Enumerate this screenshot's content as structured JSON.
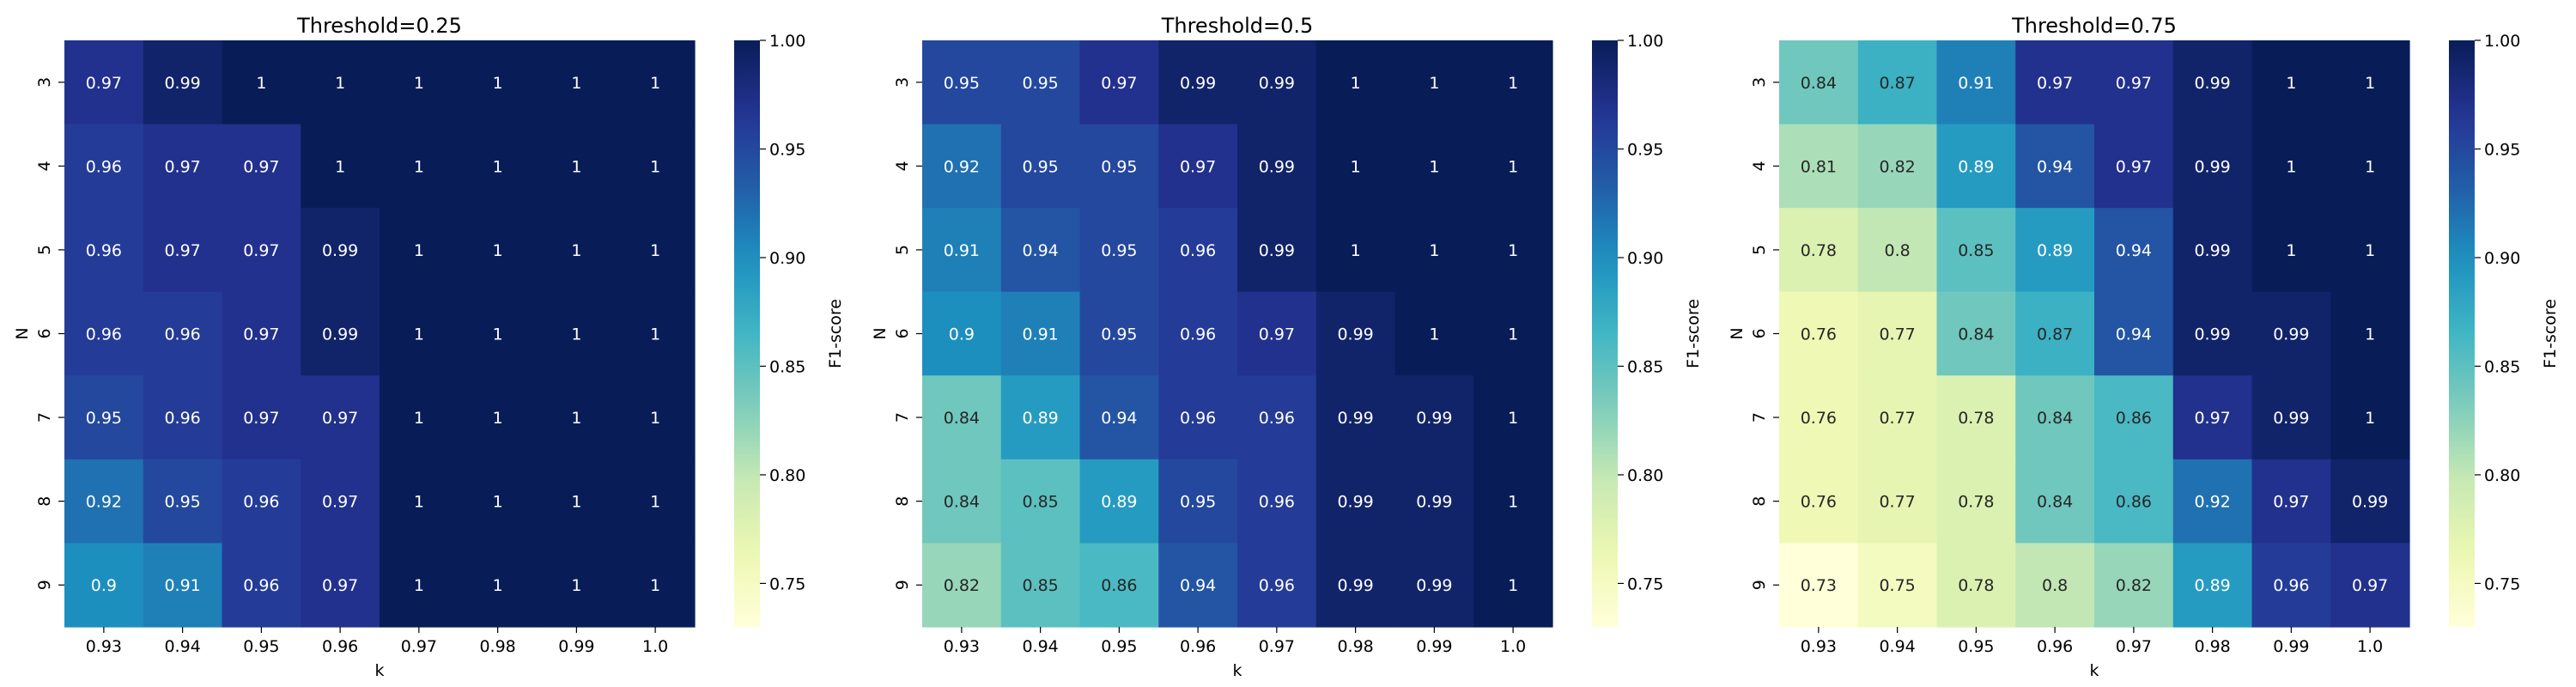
{
  "figure": {
    "domain": "heatmap-triptych"
  },
  "chart_data": [
    {
      "type": "heatmap",
      "title": "Threshold=0.25",
      "xlabel": "k",
      "ylabel": "N",
      "x": [
        "0.93",
        "0.94",
        "0.95",
        "0.96",
        "0.97",
        "0.98",
        "0.99",
        "1.0"
      ],
      "y": [
        "3",
        "4",
        "5",
        "6",
        "7",
        "8",
        "9"
      ],
      "values": [
        [
          0.97,
          0.99,
          1,
          1,
          1,
          1,
          1,
          1
        ],
        [
          0.96,
          0.97,
          0.97,
          1,
          1,
          1,
          1,
          1
        ],
        [
          0.96,
          0.97,
          0.97,
          0.99,
          1,
          1,
          1,
          1
        ],
        [
          0.96,
          0.96,
          0.97,
          0.99,
          1,
          1,
          1,
          1
        ],
        [
          0.95,
          0.96,
          0.97,
          0.97,
          1,
          1,
          1,
          1
        ],
        [
          0.92,
          0.95,
          0.96,
          0.97,
          1,
          1,
          1,
          1
        ],
        [
          0.9,
          0.91,
          0.96,
          0.97,
          1,
          1,
          1,
          1
        ]
      ],
      "colorbar": {
        "label": "F1-score",
        "ticks": [
          "0.75",
          "0.80",
          "0.85",
          "0.90",
          "0.95",
          "1.00"
        ],
        "range": [
          0.73,
          1.0
        ],
        "colormap": "YlGnBu"
      }
    },
    {
      "type": "heatmap",
      "title": "Threshold=0.5",
      "xlabel": "k",
      "ylabel": "N",
      "x": [
        "0.93",
        "0.94",
        "0.95",
        "0.96",
        "0.97",
        "0.98",
        "0.99",
        "1.0"
      ],
      "y": [
        "3",
        "4",
        "5",
        "6",
        "7",
        "8",
        "9"
      ],
      "values": [
        [
          0.95,
          0.95,
          0.97,
          0.99,
          0.99,
          1,
          1,
          1
        ],
        [
          0.92,
          0.95,
          0.95,
          0.97,
          0.99,
          1,
          1,
          1
        ],
        [
          0.91,
          0.94,
          0.95,
          0.96,
          0.99,
          1,
          1,
          1
        ],
        [
          0.9,
          0.91,
          0.95,
          0.96,
          0.97,
          0.99,
          1,
          1
        ],
        [
          0.84,
          0.89,
          0.94,
          0.96,
          0.96,
          0.99,
          0.99,
          1
        ],
        [
          0.84,
          0.85,
          0.89,
          0.95,
          0.96,
          0.99,
          0.99,
          1
        ],
        [
          0.82,
          0.85,
          0.86,
          0.94,
          0.96,
          0.99,
          0.99,
          1
        ]
      ],
      "colorbar": {
        "label": "F1-score",
        "ticks": [
          "0.75",
          "0.80",
          "0.85",
          "0.90",
          "0.95",
          "1.00"
        ],
        "range": [
          0.73,
          1.0
        ],
        "colormap": "YlGnBu"
      }
    },
    {
      "type": "heatmap",
      "title": "Threshold=0.75",
      "xlabel": "k",
      "ylabel": "N",
      "x": [
        "0.93",
        "0.94",
        "0.95",
        "0.96",
        "0.97",
        "0.98",
        "0.99",
        "1.0"
      ],
      "y": [
        "3",
        "4",
        "5",
        "6",
        "7",
        "8",
        "9"
      ],
      "values": [
        [
          0.84,
          0.87,
          0.91,
          0.97,
          0.97,
          0.99,
          1,
          1
        ],
        [
          0.81,
          0.82,
          0.89,
          0.94,
          0.97,
          0.99,
          1,
          1
        ],
        [
          0.78,
          0.8,
          0.85,
          0.89,
          0.94,
          0.99,
          1,
          1
        ],
        [
          0.76,
          0.77,
          0.84,
          0.87,
          0.94,
          0.99,
          0.99,
          1
        ],
        [
          0.76,
          0.77,
          0.78,
          0.84,
          0.86,
          0.97,
          0.99,
          1
        ],
        [
          0.76,
          0.77,
          0.78,
          0.84,
          0.86,
          0.92,
          0.97,
          0.99
        ],
        [
          0.73,
          0.75,
          0.78,
          0.8,
          0.82,
          0.89,
          0.96,
          0.97
        ]
      ],
      "colorbar": {
        "label": "F1-score",
        "ticks": [
          "0.75",
          "0.80",
          "0.85",
          "0.90",
          "0.95",
          "1.00"
        ],
        "range": [
          0.73,
          1.0
        ],
        "colormap": "YlGnBu"
      }
    }
  ]
}
